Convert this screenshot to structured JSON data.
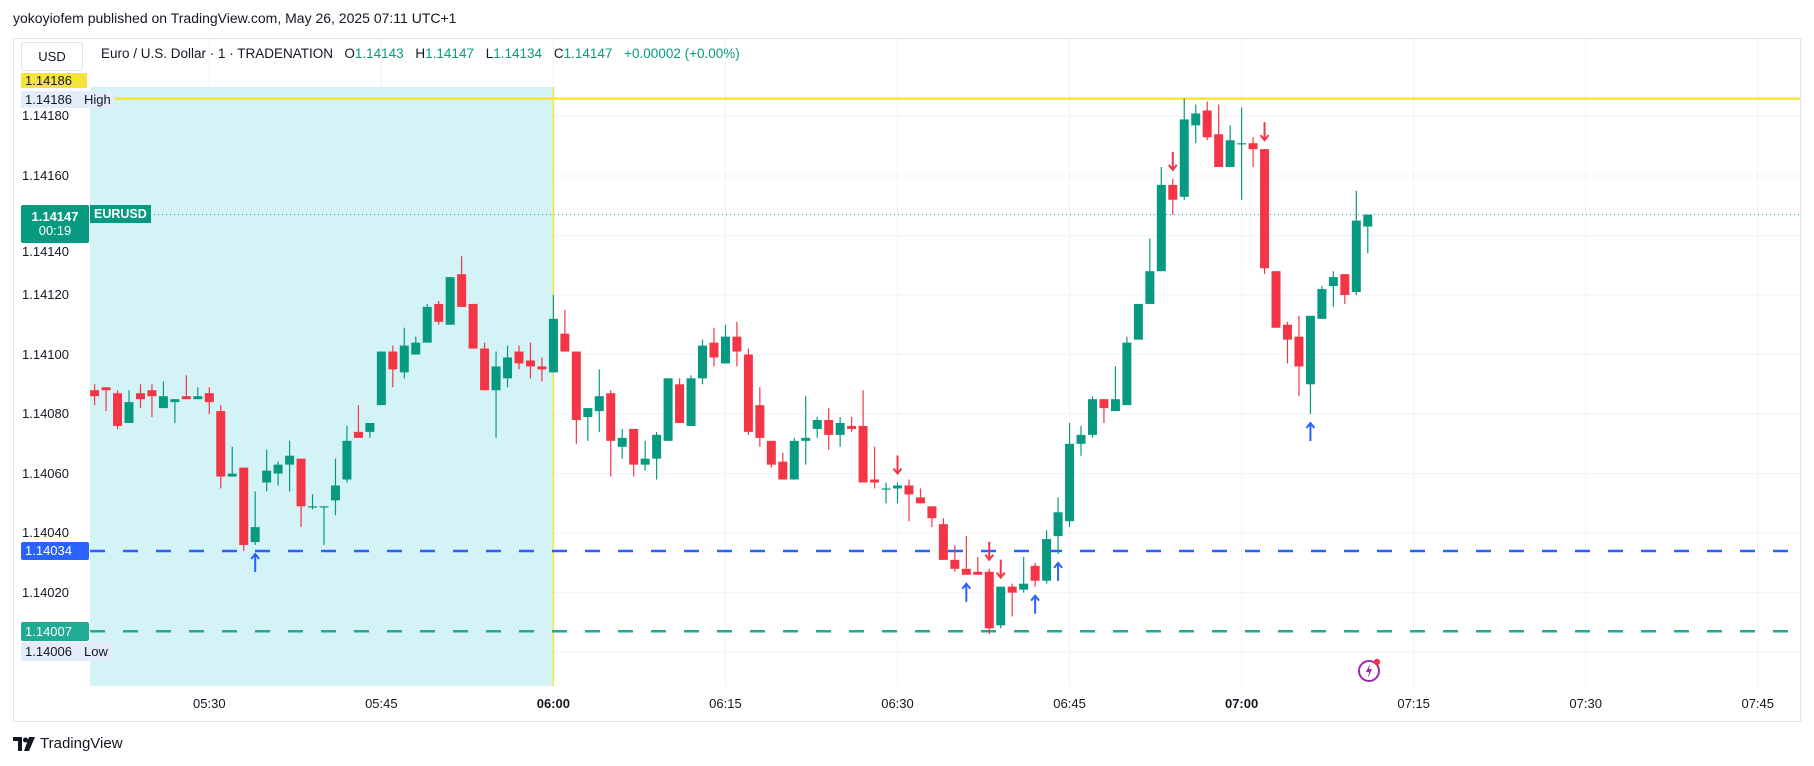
{
  "publish_line": "yokoyiofem published on TradingView.com, May 26, 2025 07:11 UTC+1",
  "currency_button": "USD",
  "legend": {
    "title": "Euro / U.S. Dollar · 1 · TRADENATION",
    "o_label": "O",
    "o_value": "1.14143",
    "h_label": "H",
    "h_value": "1.14147",
    "l_label": "L",
    "l_value": "1.14134",
    "c_label": "C",
    "c_value": "1.14147",
    "change": "+0.00002 (+0.00%)"
  },
  "tags": {
    "high_top_value": "1.14186",
    "high_value": "1.14186",
    "high_label": "High",
    "current_value": "1.14147",
    "countdown": "00:19",
    "symbol": "EURUSD",
    "blue_line_value": "1.14034",
    "green_line_value": "1.14007",
    "low_value": "1.14006",
    "low_label": "Low"
  },
  "branding": "TradingView",
  "colors": {
    "up": "#089981",
    "down": "#f23645",
    "session": "#d4f3f6",
    "high_line": "#f7e43a",
    "blue_line": "#2962ff",
    "green_line": "#22ab94"
  },
  "chart_data": {
    "type": "candlestick",
    "symbol": "EURUSD",
    "interval": "1",
    "y_ticks": [
      "1.14180",
      "1.14160",
      "1.14140",
      "1.14120",
      "1.14100",
      "1.14080",
      "1.14060",
      "1.14040",
      "1.14020"
    ],
    "x_ticks": [
      {
        "label": "05:30",
        "bold": false
      },
      {
        "label": "05:45",
        "bold": false
      },
      {
        "label": "06:00",
        "bold": true
      },
      {
        "label": "06:15",
        "bold": false
      },
      {
        "label": "06:30",
        "bold": false
      },
      {
        "label": "06:45",
        "bold": false
      },
      {
        "label": "07:00",
        "bold": true
      },
      {
        "label": "07:15",
        "bold": false
      },
      {
        "label": "07:30",
        "bold": false
      },
      {
        "label": "07:45",
        "bold": false
      }
    ],
    "session_range": {
      "start": "05:20",
      "end": "06:00",
      "high": 1.14186,
      "low": 1.14006
    },
    "hlines": {
      "high": 1.14186,
      "current": 1.14147,
      "blue": 1.14034,
      "green": 1.14007
    },
    "candles_columns": [
      "time",
      "open",
      "high",
      "low",
      "close"
    ],
    "candles": [
      [
        "05:20",
        1.14088,
        1.1409,
        1.14083,
        1.14086
      ],
      [
        "05:21",
        1.14089,
        1.14089,
        1.14081,
        1.14088
      ],
      [
        "05:22",
        1.14087,
        1.14088,
        1.14075,
        1.14076
      ],
      [
        "05:23",
        1.14077,
        1.14088,
        1.14077,
        1.14084
      ],
      [
        "05:24",
        1.14087,
        1.1409,
        1.14082,
        1.14085
      ],
      [
        "05:25",
        1.14088,
        1.1409,
        1.14079,
        1.14086
      ],
      [
        "05:26",
        1.14082,
        1.14091,
        1.14082,
        1.14086
      ],
      [
        "05:27",
        1.14084,
        1.14085,
        1.14077,
        1.14085
      ],
      [
        "05:28",
        1.14086,
        1.14093,
        1.14085,
        1.14085
      ],
      [
        "05:29",
        1.14085,
        1.14089,
        1.14085,
        1.14086
      ],
      [
        "05:30",
        1.14087,
        1.14089,
        1.1408,
        1.14084
      ],
      [
        "05:31",
        1.14081,
        1.14083,
        1.14055,
        1.14059
      ],
      [
        "05:32",
        1.14059,
        1.14069,
        1.14059,
        1.1406
      ],
      [
        "05:33",
        1.14062,
        1.14062,
        1.14034,
        1.14036
      ],
      [
        "05:34",
        1.14037,
        1.14054,
        1.14036,
        1.14042
      ],
      [
        "05:35",
        1.14057,
        1.14068,
        1.14054,
        1.14061
      ],
      [
        "05:36",
        1.1406,
        1.14064,
        1.14056,
        1.14063
      ],
      [
        "05:37",
        1.14063,
        1.14071,
        1.14054,
        1.14066
      ],
      [
        "05:38",
        1.14065,
        1.14065,
        1.14042,
        1.14049
      ],
      [
        "05:39",
        1.14049,
        1.14053,
        1.14048,
        1.14049
      ],
      [
        "05:40",
        1.14049,
        1.14049,
        1.14036,
        1.14049
      ],
      [
        "05:41",
        1.14051,
        1.14065,
        1.14046,
        1.14056
      ],
      [
        "05:42",
        1.14058,
        1.14076,
        1.14057,
        1.14071
      ],
      [
        "05:43",
        1.14074,
        1.14083,
        1.14072,
        1.14072
      ],
      [
        "05:44",
        1.14074,
        1.14077,
        1.14072,
        1.14077
      ],
      [
        "05:45",
        1.14083,
        1.14101,
        1.14083,
        1.14101
      ],
      [
        "05:46",
        1.14101,
        1.14103,
        1.14089,
        1.14095
      ],
      [
        "05:47",
        1.14094,
        1.14109,
        1.14092,
        1.14103
      ],
      [
        "05:48",
        1.141,
        1.14106,
        1.141,
        1.14104
      ],
      [
        "05:49",
        1.14104,
        1.14117,
        1.14104,
        1.14116
      ],
      [
        "05:50",
        1.14117,
        1.14118,
        1.1411,
        1.14111
      ],
      [
        "05:51",
        1.1411,
        1.14126,
        1.1411,
        1.14126
      ],
      [
        "05:52",
        1.14127,
        1.14133,
        1.14116,
        1.14116
      ],
      [
        "05:53",
        1.14117,
        1.14117,
        1.14102,
        1.14102
      ],
      [
        "05:54",
        1.14102,
        1.14104,
        1.14088,
        1.14088
      ],
      [
        "05:55",
        1.14088,
        1.14101,
        1.14072,
        1.14096
      ],
      [
        "05:56",
        1.14092,
        1.14103,
        1.14089,
        1.14099
      ],
      [
        "05:57",
        1.14101,
        1.14103,
        1.14095,
        1.14097
      ],
      [
        "05:58",
        1.14098,
        1.14104,
        1.14092,
        1.14096
      ],
      [
        "05:59",
        1.14096,
        1.14099,
        1.14091,
        1.14095
      ],
      [
        "06:00",
        1.14094,
        1.1412,
        1.14094,
        1.14112
      ],
      [
        "06:01",
        1.14107,
        1.14115,
        1.14101,
        1.14101
      ],
      [
        "06:02",
        1.14101,
        1.14101,
        1.1407,
        1.14078
      ],
      [
        "06:03",
        1.14079,
        1.14082,
        1.14071,
        1.14082
      ],
      [
        "06:04",
        1.14081,
        1.14095,
        1.14074,
        1.14086
      ],
      [
        "06:05",
        1.14087,
        1.14088,
        1.14059,
        1.14071
      ],
      [
        "06:06",
        1.14069,
        1.14075,
        1.14065,
        1.14072
      ],
      [
        "06:07",
        1.14075,
        1.14075,
        1.14059,
        1.14063
      ],
      [
        "06:08",
        1.14063,
        1.14071,
        1.14061,
        1.14065
      ],
      [
        "06:09",
        1.14065,
        1.14074,
        1.14058,
        1.14073
      ],
      [
        "06:10",
        1.14071,
        1.14092,
        1.14071,
        1.14092
      ],
      [
        "06:11",
        1.1409,
        1.14092,
        1.14077,
        1.14077
      ],
      [
        "06:12",
        1.14076,
        1.14093,
        1.14076,
        1.14092
      ],
      [
        "06:13",
        1.14092,
        1.14105,
        1.1409,
        1.14103
      ],
      [
        "06:14",
        1.14104,
        1.14109,
        1.14096,
        1.14099
      ],
      [
        "06:15",
        1.14097,
        1.1411,
        1.14097,
        1.14106
      ],
      [
        "06:16",
        1.14106,
        1.14111,
        1.14096,
        1.14101
      ],
      [
        "06:17",
        1.141,
        1.14102,
        1.14073,
        1.14074
      ],
      [
        "06:18",
        1.14083,
        1.14089,
        1.14069,
        1.14072
      ],
      [
        "06:19",
        1.14071,
        1.14071,
        1.14062,
        1.14063
      ],
      [
        "06:20",
        1.14064,
        1.14067,
        1.14058,
        1.14058
      ],
      [
        "06:21",
        1.14058,
        1.14072,
        1.14058,
        1.14071
      ],
      [
        "06:22",
        1.14071,
        1.14086,
        1.14063,
        1.14072
      ],
      [
        "06:23",
        1.14075,
        1.14079,
        1.14072,
        1.14078
      ],
      [
        "06:24",
        1.14078,
        1.14082,
        1.14068,
        1.14073
      ],
      [
        "06:25",
        1.14073,
        1.14079,
        1.14069,
        1.14077
      ],
      [
        "06:26",
        1.14076,
        1.14079,
        1.14074,
        1.14075
      ],
      [
        "06:27",
        1.14076,
        1.14088,
        1.14057,
        1.14057
      ],
      [
        "06:28",
        1.14058,
        1.14069,
        1.14055,
        1.14057
      ],
      [
        "06:29",
        1.14055,
        1.14057,
        1.1405,
        1.14055
      ],
      [
        "06:30",
        1.14055,
        1.14057,
        1.1405,
        1.14056
      ],
      [
        "06:31",
        1.14056,
        1.14058,
        1.14044,
        1.14053
      ],
      [
        "06:32",
        1.14052,
        1.14055,
        1.1405,
        1.1405
      ],
      [
        "06:33",
        1.14049,
        1.14049,
        1.14042,
        1.14045
      ],
      [
        "06:34",
        1.14043,
        1.14045,
        1.14031,
        1.14031
      ],
      [
        "06:35",
        1.14031,
        1.14036,
        1.14027,
        1.14028
      ],
      [
        "06:36",
        1.14028,
        1.14039,
        1.14026,
        1.14026
      ],
      [
        "06:37",
        1.14027,
        1.14032,
        1.14026,
        1.14026
      ],
      [
        "06:38",
        1.14027,
        1.14028,
        1.14006,
        1.14008
      ],
      [
        "06:39",
        1.14009,
        1.14022,
        1.14008,
        1.14022
      ],
      [
        "06:40",
        1.14022,
        1.14023,
        1.14012,
        1.1402
      ],
      [
        "06:41",
        1.14021,
        1.14032,
        1.1402,
        1.14023
      ],
      [
        "06:42",
        1.14029,
        1.1403,
        1.14022,
        1.14024
      ],
      [
        "06:43",
        1.14024,
        1.14041,
        1.14023,
        1.14038
      ],
      [
        "06:44",
        1.14039,
        1.14052,
        1.14033,
        1.14047
      ],
      [
        "06:45",
        1.14044,
        1.14077,
        1.14042,
        1.1407
      ],
      [
        "06:46",
        1.1407,
        1.14076,
        1.14066,
        1.14073
      ],
      [
        "06:47",
        1.14073,
        1.14086,
        1.14072,
        1.14085
      ],
      [
        "06:48",
        1.14085,
        1.14085,
        1.14077,
        1.14082
      ],
      [
        "06:49",
        1.14081,
        1.14096,
        1.14081,
        1.14085
      ],
      [
        "06:50",
        1.14083,
        1.14106,
        1.14083,
        1.14104
      ],
      [
        "06:51",
        1.14105,
        1.14117,
        1.14105,
        1.14117
      ],
      [
        "06:52",
        1.14117,
        1.14139,
        1.14117,
        1.14128
      ],
      [
        "06:53",
        1.14128,
        1.14163,
        1.14128,
        1.14157
      ],
      [
        "06:54",
        1.14157,
        1.14159,
        1.14147,
        1.14152
      ],
      [
        "06:55",
        1.14153,
        1.14186,
        1.14152,
        1.14179
      ],
      [
        "06:56",
        1.14177,
        1.14184,
        1.14171,
        1.14181
      ],
      [
        "06:57",
        1.14182,
        1.14185,
        1.14172,
        1.14173
      ],
      [
        "06:58",
        1.14174,
        1.14184,
        1.14163,
        1.14163
      ],
      [
        "06:59",
        1.14163,
        1.14177,
        1.14163,
        1.14172
      ],
      [
        "07:00",
        1.14171,
        1.14183,
        1.14152,
        1.14171
      ],
      [
        "07:01",
        1.14171,
        1.14173,
        1.14163,
        1.14169
      ],
      [
        "07:02",
        1.14169,
        1.14169,
        1.14127,
        1.14129
      ],
      [
        "07:03",
        1.14128,
        1.14128,
        1.14109,
        1.14109
      ],
      [
        "07:04",
        1.1411,
        1.14111,
        1.14097,
        1.14105
      ],
      [
        "07:05",
        1.14106,
        1.14113,
        1.14086,
        1.14096
      ],
      [
        "07:06",
        1.1409,
        1.14113,
        1.1408,
        1.14113
      ],
      [
        "07:07",
        1.14112,
        1.14123,
        1.14112,
        1.14122
      ],
      [
        "07:08",
        1.14123,
        1.14128,
        1.14116,
        1.14126
      ],
      [
        "07:09",
        1.14127,
        1.14127,
        1.14117,
        1.1412
      ],
      [
        "07:10",
        1.14121,
        1.14155,
        1.1412,
        1.14145
      ],
      [
        "07:11",
        1.14143,
        1.14147,
        1.14134,
        1.14147
      ]
    ],
    "markers": [
      {
        "time": "05:34",
        "dir": "up"
      },
      {
        "time": "06:30",
        "dir": "down"
      },
      {
        "time": "06:36",
        "dir": "up"
      },
      {
        "time": "06:38",
        "dir": "down"
      },
      {
        "time": "06:39",
        "dir": "down"
      },
      {
        "time": "06:42",
        "dir": "up"
      },
      {
        "time": "06:44",
        "dir": "up"
      },
      {
        "time": "06:54",
        "dir": "down"
      },
      {
        "time": "07:02",
        "dir": "down"
      },
      {
        "time": "07:06",
        "dir": "up"
      }
    ]
  }
}
